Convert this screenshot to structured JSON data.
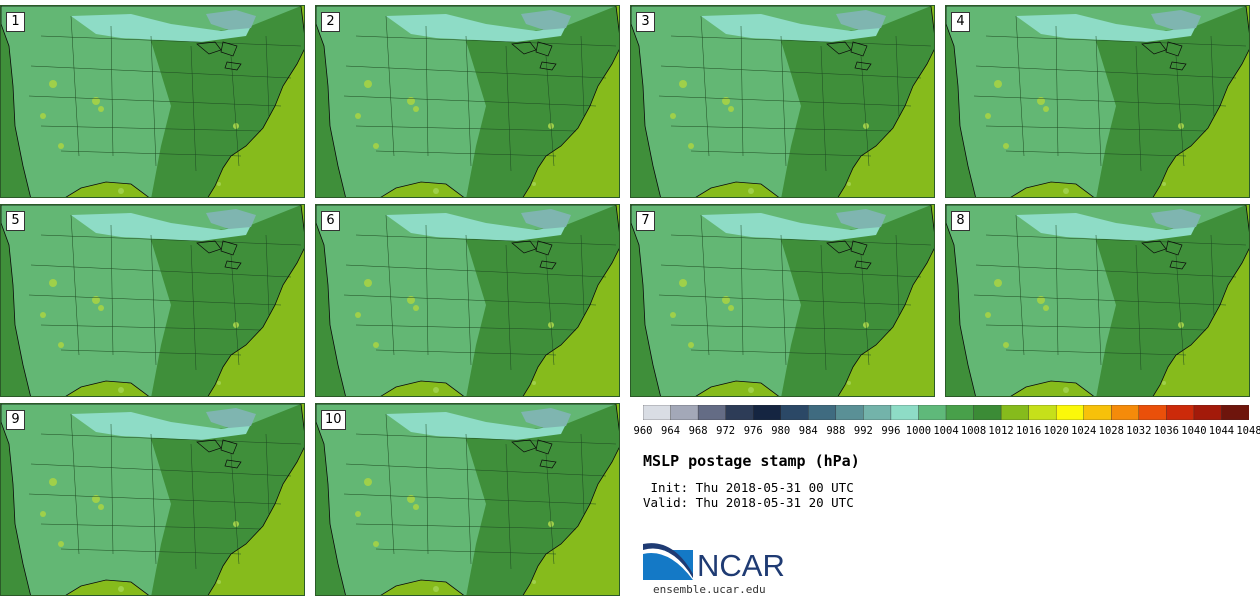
{
  "title": "MSLP postage stamp (hPa)",
  "init": " Init: Thu 2018-05-31 00 UTC",
  "valid": "Valid: Thu 2018-05-31 20 UTC",
  "logo": {
    "text": "NCAR",
    "site": "ensemble.ucar.edu"
  },
  "stamps": [
    "1",
    "2",
    "3",
    "4",
    "5",
    "6",
    "7",
    "8",
    "9",
    "10"
  ],
  "colorbar": {
    "ticks": [
      "960",
      "964",
      "968",
      "972",
      "976",
      "980",
      "984",
      "988",
      "992",
      "996",
      "1000",
      "1004",
      "1008",
      "1012",
      "1016",
      "1020",
      "1024",
      "1028",
      "1032",
      "1036",
      "1040",
      "1044",
      "1048"
    ],
    "colors": [
      "#d9dde4",
      "#a3a8b8",
      "#646c85",
      "#2d3c57",
      "#152541",
      "#2b4866",
      "#3f6b80",
      "#5a9096",
      "#73b3aa",
      "#8edcc6",
      "#5fb97a",
      "#48a04a",
      "#3b8b36",
      "#86bb1c",
      "#c6e01a",
      "#fbf80a",
      "#f7c10a",
      "#f58b0a",
      "#ea500a",
      "#cc2a0a",
      "#a31a0a",
      "#6e150c"
    ]
  },
  "colors": {
    "ocean": "#86bb1c",
    "land_dark": "#3f8f3a",
    "land_mid": "#63b774",
    "land_light": "#8edcc6",
    "cold_spot": "#7fb5b0",
    "border": "#0a0a0a"
  }
}
